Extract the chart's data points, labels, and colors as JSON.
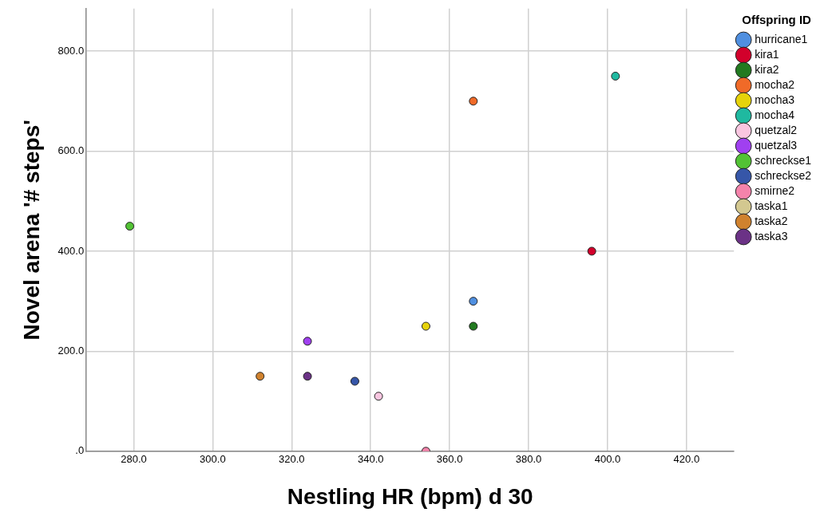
{
  "chart_data": {
    "type": "scatter",
    "xlabel": "Nestling HR (bpm) d 30",
    "ylabel": "Novel arena '# steps'",
    "legend_title": "Offspring ID",
    "legend": "right",
    "grid": true,
    "marker": "circle",
    "xlim": [
      268,
      432
    ],
    "ylim": [
      0,
      885
    ],
    "xticks": [
      {
        "value": 280,
        "label": "280.0"
      },
      {
        "value": 300,
        "label": "300.0"
      },
      {
        "value": 320,
        "label": "320.0"
      },
      {
        "value": 340,
        "label": "340.0"
      },
      {
        "value": 360,
        "label": "360.0"
      },
      {
        "value": 380,
        "label": "380.0"
      },
      {
        "value": 400,
        "label": "400.0"
      },
      {
        "value": 420,
        "label": "420.0"
      }
    ],
    "yticks": [
      {
        "value": 0,
        "label": ".0"
      },
      {
        "value": 200,
        "label": "200.0"
      },
      {
        "value": 400,
        "label": "400.0"
      },
      {
        "value": 600,
        "label": "600.0"
      },
      {
        "value": 800,
        "label": "800.0"
      }
    ],
    "series": [
      {
        "name": "hurricane1",
        "color": "#4f8fe0",
        "x": [
          366
        ],
        "values": [
          300
        ]
      },
      {
        "name": "kira1",
        "color": "#d2002b",
        "x": [
          396
        ],
        "values": [
          400
        ]
      },
      {
        "name": "kira2",
        "color": "#227a20",
        "x": [
          366
        ],
        "values": [
          250
        ]
      },
      {
        "name": "mocha2",
        "color": "#f06a28",
        "x": [
          366
        ],
        "values": [
          700
        ]
      },
      {
        "name": "mocha3",
        "color": "#e6d30a",
        "x": [
          354
        ],
        "values": [
          250
        ]
      },
      {
        "name": "mocha4",
        "color": "#1fb9a0",
        "x": [
          402
        ],
        "values": [
          750
        ]
      },
      {
        "name": "quetzal2",
        "color": "#f9c6e0",
        "x": [
          342
        ],
        "values": [
          110
        ]
      },
      {
        "name": "quetzal3",
        "color": "#a040f0",
        "x": [
          324
        ],
        "values": [
          220
        ]
      },
      {
        "name": "schreckse1",
        "color": "#52c234",
        "x": [
          279
        ],
        "values": [
          450
        ]
      },
      {
        "name": "schreckse2",
        "color": "#3656a8",
        "x": [
          336
        ],
        "values": [
          140
        ]
      },
      {
        "name": "smirne2",
        "color": "#f583ab",
        "x": [
          354
        ],
        "values": [
          0
        ]
      },
      {
        "name": "taska1",
        "color": "#d3c890",
        "x": [
          null
        ],
        "values": [
          null
        ]
      },
      {
        "name": "taska2",
        "color": "#d0822e",
        "x": [
          312
        ],
        "values": [
          150
        ]
      },
      {
        "name": "taska3",
        "color": "#6b3286",
        "x": [
          324
        ],
        "values": [
          150
        ]
      }
    ]
  }
}
